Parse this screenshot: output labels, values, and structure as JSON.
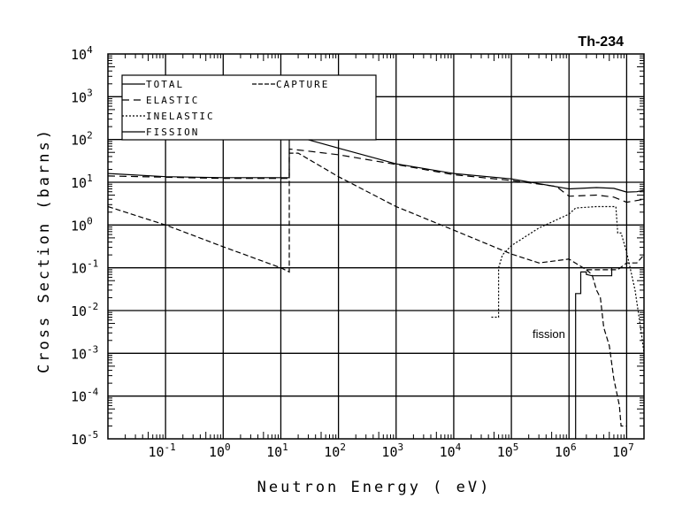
{
  "chart_data": {
    "type": "line",
    "title": "Th-234",
    "xlabel": "Neutron Energy ( eV)",
    "ylabel": "Cross Section (barns)",
    "xscale": "log",
    "yscale": "log",
    "xlim": [
      0.01,
      20000000
    ],
    "ylim": [
      1e-05,
      10000
    ],
    "grid": true,
    "tick_base": "10",
    "xtick_exponents": [
      "-1",
      "0",
      "1",
      "2",
      "3",
      "4",
      "5",
      "6",
      "7"
    ],
    "ytick_exponents": [
      "-5",
      "-4",
      "-3",
      "-2",
      "-1",
      "0",
      "1",
      "2",
      "3",
      "4"
    ],
    "legend_placement": "top-left",
    "annotation": "fission",
    "series": [
      {
        "name": "TOTAL",
        "style": "solid",
        "legend": true,
        "points": [
          [
            0.01,
            16
          ],
          [
            0.1,
            13.5
          ],
          [
            1,
            12.8
          ],
          [
            14,
            12.8
          ],
          [
            14,
            100
          ],
          [
            18,
            100
          ],
          [
            18,
            120
          ],
          [
            25,
            120
          ],
          [
            25,
            105
          ],
          [
            100,
            63
          ],
          [
            1000,
            27
          ],
          [
            10000,
            16
          ],
          [
            100000,
            12
          ],
          [
            1000000,
            7
          ],
          [
            3000000,
            7.5
          ],
          [
            6000000,
            7.2
          ],
          [
            10000000,
            5.9
          ],
          [
            15000000,
            6
          ],
          [
            20000000,
            6.5
          ]
        ]
      },
      {
        "name": "ELASTIC",
        "style": "dashed",
        "legend": true,
        "points": [
          [
            0.01,
            14
          ],
          [
            1,
            12.3
          ],
          [
            14,
            12.3
          ],
          [
            14,
            60
          ],
          [
            25,
            55
          ],
          [
            100,
            44
          ],
          [
            1000,
            26
          ],
          [
            10000,
            15
          ],
          [
            100000,
            11
          ],
          [
            600000,
            8
          ],
          [
            1000000,
            4.7
          ],
          [
            3000000,
            5
          ],
          [
            6000000,
            4.5
          ],
          [
            10000000,
            3.4
          ],
          [
            20000000,
            4
          ]
        ]
      },
      {
        "name": "INELASTIC",
        "style": "dotted",
        "legend": true,
        "points": [
          [
            45000,
            0.007
          ],
          [
            60000,
            0.007
          ],
          [
            60000,
            0.1
          ],
          [
            70000,
            0.2
          ],
          [
            100000,
            0.33
          ],
          [
            300000,
            0.85
          ],
          [
            1000000,
            1.8
          ],
          [
            1300000,
            2.5
          ],
          [
            3000000,
            2.7
          ],
          [
            6500000,
            2.7
          ],
          [
            7000000,
            0.65
          ],
          [
            8000000,
            0.65
          ],
          [
            10000000,
            0.23
          ],
          [
            14000000,
            0.03
          ],
          [
            18000000,
            0.003
          ],
          [
            20000000,
            0.001
          ]
        ]
      },
      {
        "name": "FISSION",
        "style": "solid",
        "legend": true,
        "points": [
          [
            1300000,
            1e-05
          ],
          [
            1300000,
            0.025
          ],
          [
            1600000,
            0.025
          ],
          [
            1600000,
            0.08
          ],
          [
            2000000,
            0.08
          ],
          [
            2000000,
            0.07
          ],
          [
            2500000,
            0.065
          ],
          [
            5500000,
            0.065
          ],
          [
            5500000,
            0.1
          ],
          [
            20000000,
            0.1
          ]
        ]
      },
      {
        "name": "CAPTURE",
        "style": "capture",
        "legend": true,
        "points": [
          [
            0.01,
            2.7
          ],
          [
            0.1,
            1
          ],
          [
            1,
            0.31
          ],
          [
            10,
            0.1
          ],
          [
            14,
            0.08
          ],
          [
            14,
            48
          ],
          [
            20,
            48
          ],
          [
            100,
            13.5
          ],
          [
            1000,
            2.7
          ],
          [
            10000,
            0.76
          ],
          [
            100000,
            0.21
          ],
          [
            300000,
            0.13
          ],
          [
            1000000,
            0.16
          ],
          [
            2000000,
            0.09
          ],
          [
            7000000,
            0.09
          ],
          [
            10000000,
            0.13
          ],
          [
            15000000,
            0.13
          ],
          [
            20000000,
            0.2
          ]
        ]
      },
      {
        "name": "CAPTURE",
        "style": "capture",
        "legend": false,
        "points": [
          [
            2000000,
            0.09
          ],
          [
            2500000,
            0.07
          ],
          [
            3000000,
            0.03
          ],
          [
            3500000,
            0.02
          ],
          [
            4000000,
            0.004
          ],
          [
            5000000,
            0.0015
          ],
          [
            6000000,
            0.00025
          ],
          [
            7500000,
            6e-05
          ],
          [
            8000000,
            2e-05
          ],
          [
            10000000,
            2e-05
          ]
        ]
      }
    ]
  }
}
